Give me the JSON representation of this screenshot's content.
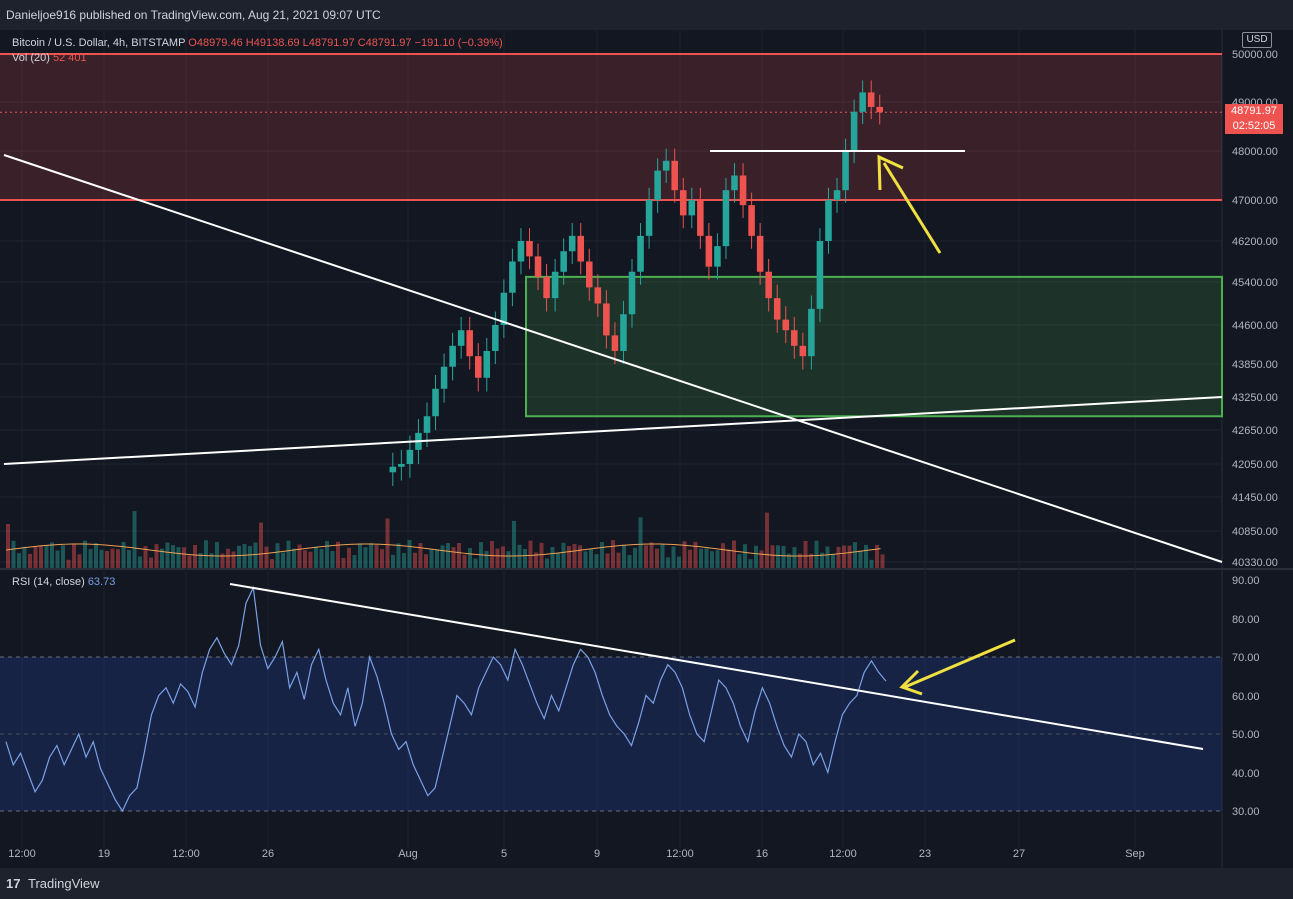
{
  "header": {
    "publisher": "Danieljoe916 published on TradingView.com, Aug 21, 2021 09:07 UTC"
  },
  "legend": {
    "symbol": "Bitcoin / U.S. Dollar, 4h, BITSTAMP",
    "ohlc": "O48979.46  H49138.69  L48791.97  C48791.97  −191.10 (−0.39%)",
    "vol_label": "Vol (20)",
    "vol_values": "52  401",
    "rsi_label": "RSI (14, close)",
    "rsi_value": "63.73"
  },
  "currency": "USD",
  "last_price": {
    "price": "48791.97",
    "countdown": "02:52:05"
  },
  "footer": {
    "brand": "TradingView",
    "logo_icon": "tradingview-logo-icon"
  },
  "colors": {
    "up": "#26a69a",
    "down": "#ef5350",
    "resistance_zone": "#ef5350",
    "support_zone": "#4caf50",
    "rsi_line": "#7aa0e6",
    "arrow": "#f0e040",
    "trendline": "#ffffff"
  },
  "chart_data": [
    {
      "type": "candlestick",
      "symbol": "BTCUSD",
      "interval": "4h",
      "price_axis_ticks": [
        "50000.00",
        "49000.00",
        "48000.00",
        "47000.00",
        "46200.00",
        "45400.00",
        "44600.00",
        "43850.00",
        "43250.00",
        "42650.00",
        "42050.00",
        "41450.00",
        "40850.00",
        "40330.00"
      ],
      "x_tick_labels": [
        "12:00",
        "19",
        "12:00",
        "26",
        "Aug",
        "5",
        "9",
        "12:00",
        "16",
        "12:00",
        "23",
        "27",
        "Sep"
      ],
      "zones": [
        {
          "name": "resistance",
          "from": 47000,
          "to": 50000,
          "color": "#ef5350"
        },
        {
          "name": "support",
          "from": 42900,
          "to": 45500,
          "color": "#4caf50"
        }
      ],
      "horizontal_levels": [
        48000
      ],
      "grid": true,
      "close_series_approx": [
        41900,
        42000,
        42050,
        42300,
        42600,
        42900,
        43400,
        43800,
        44200,
        44500,
        44000,
        43600,
        44100,
        44600,
        45200,
        45800,
        46200,
        45900,
        45500,
        45100,
        45600,
        46000,
        46300,
        45800,
        45300,
        45000,
        44400,
        44100,
        44800,
        45600,
        46300,
        47000,
        47600,
        47800,
        47200,
        46700,
        47000,
        46300,
        45700,
        46100,
        47200,
        47500,
        46900,
        46300,
        45600,
        45100,
        44700,
        44500,
        44200,
        44000,
        44900,
        46200,
        47000,
        47200,
        48000,
        48800,
        49200,
        48900,
        48792
      ]
    },
    {
      "type": "line",
      "name": "RSI (14, close)",
      "ylim": [
        25,
        92
      ],
      "y_ticks": [
        "90.00",
        "80.00",
        "70.00",
        "60.00",
        "50.00",
        "40.00",
        "30.00"
      ],
      "bands": [
        30,
        70
      ],
      "values": [
        48,
        42,
        45,
        40,
        35,
        38,
        44,
        47,
        42,
        46,
        50,
        44,
        48,
        41,
        37,
        33,
        30,
        34,
        36,
        45,
        55,
        60,
        62,
        58,
        63,
        61,
        57,
        66,
        72,
        75,
        71,
        68,
        73,
        84,
        88,
        73,
        67,
        70,
        74,
        62,
        66,
        59,
        68,
        72,
        64,
        58,
        55,
        62,
        52,
        58,
        70,
        65,
        58,
        50,
        46,
        48,
        42,
        38,
        34,
        36,
        44,
        52,
        60,
        58,
        55,
        62,
        66,
        70,
        68,
        64,
        72,
        68,
        63,
        58,
        54,
        60,
        56,
        62,
        68,
        72,
        70,
        66,
        60,
        55,
        52,
        50,
        47,
        53,
        60,
        58,
        64,
        68,
        66,
        62,
        55,
        50,
        48,
        56,
        64,
        62,
        58,
        52,
        48,
        56,
        62,
        58,
        52,
        47,
        44,
        50,
        48,
        42,
        45,
        40,
        48,
        55,
        58,
        60,
        66,
        69,
        66,
        63.73
      ]
    }
  ]
}
